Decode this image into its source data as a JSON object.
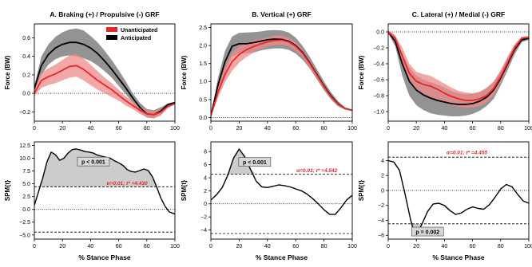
{
  "figure": {
    "shared_xlabel": "% Stance Phase",
    "ylabel_force": "Force (BW)",
    "ylabel_spm": "SPM{t}"
  },
  "colors": {
    "unanticipated": "#e8262a",
    "unanticipated_band": "#f08a8a",
    "anticipated": "#000000",
    "anticipated_band": "#808080",
    "spm_fill": "#cccccc",
    "threshold_text": "#e8262a"
  },
  "chart_data": [
    {
      "id": "A-force",
      "type": "line",
      "title": "A. Braking (+) / Propulsive (-) GRF",
      "xlabel": "",
      "ylabel": "Force (BW)",
      "xlim": [
        0,
        100
      ],
      "ylim": [
        -0.3,
        0.75
      ],
      "xticks": [
        "0",
        "20",
        "40",
        "60",
        "80",
        "100"
      ],
      "yticks": [
        {
          "v": -0.2,
          "t": "−0.2"
        },
        {
          "v": 0,
          "t": "0.0"
        },
        {
          "v": 0.2,
          "t": "0.2"
        },
        {
          "v": 0.4,
          "t": "0.4"
        },
        {
          "v": 0.6,
          "t": "0.6"
        }
      ],
      "legend": {
        "position": "top-right",
        "entries": [
          "Unanticipated",
          "Anticipated"
        ]
      },
      "hlines": [
        {
          "y": 0,
          "style": "dotted"
        }
      ],
      "x": [
        0,
        5,
        10,
        15,
        20,
        25,
        30,
        35,
        40,
        45,
        50,
        55,
        60,
        65,
        70,
        75,
        80,
        85,
        90,
        95,
        100
      ],
      "series": [
        {
          "name": "Anticipated",
          "color_key": "anticipated",
          "values": [
            0.05,
            0.3,
            0.42,
            0.49,
            0.53,
            0.55,
            0.55,
            0.53,
            0.49,
            0.43,
            0.35,
            0.26,
            0.16,
            0.06,
            -0.05,
            -0.15,
            -0.22,
            -0.23,
            -0.19,
            -0.12,
            -0.1
          ],
          "upper": [
            0.08,
            0.4,
            0.53,
            0.61,
            0.66,
            0.69,
            0.7,
            0.68,
            0.62,
            0.55,
            0.46,
            0.36,
            0.25,
            0.13,
            0.0,
            -0.1,
            -0.17,
            -0.18,
            -0.15,
            -0.11,
            -0.09
          ],
          "lower": [
            0.02,
            0.2,
            0.31,
            0.37,
            0.4,
            0.41,
            0.4,
            0.38,
            0.35,
            0.3,
            0.24,
            0.17,
            0.08,
            -0.01,
            -0.1,
            -0.2,
            -0.26,
            -0.27,
            -0.23,
            -0.14,
            -0.11
          ]
        },
        {
          "name": "Unanticipated",
          "color_key": "unanticipated",
          "values": [
            0.0,
            0.14,
            0.18,
            0.21,
            0.25,
            0.29,
            0.3,
            0.26,
            0.2,
            0.14,
            0.09,
            0.04,
            -0.02,
            -0.08,
            -0.13,
            -0.18,
            -0.22,
            -0.23,
            -0.2,
            -0.14,
            -0.11
          ],
          "upper": [
            0.03,
            0.22,
            0.27,
            0.31,
            0.36,
            0.41,
            0.42,
            0.38,
            0.31,
            0.24,
            0.17,
            0.11,
            0.04,
            -0.03,
            -0.09,
            -0.14,
            -0.18,
            -0.19,
            -0.17,
            -0.12,
            -0.1
          ],
          "lower": [
            -0.03,
            0.06,
            0.09,
            0.11,
            0.14,
            0.17,
            0.18,
            0.14,
            0.09,
            0.04,
            0.0,
            -0.04,
            -0.08,
            -0.13,
            -0.17,
            -0.22,
            -0.26,
            -0.27,
            -0.24,
            -0.16,
            -0.12
          ]
        }
      ]
    },
    {
      "id": "B-force",
      "type": "line",
      "title": "B. Vertical (+) GRF",
      "xlabel": "",
      "ylabel": "Force (BW)",
      "xlim": [
        0,
        100
      ],
      "ylim": [
        -0.1,
        2.6
      ],
      "xticks": [
        "0",
        "20",
        "40",
        "60",
        "80",
        "100"
      ],
      "yticks": [
        {
          "v": 0,
          "t": "0.0"
        },
        {
          "v": 0.5,
          "t": "0.5"
        },
        {
          "v": 1.0,
          "t": "1.0"
        },
        {
          "v": 1.5,
          "t": "1.5"
        },
        {
          "v": 2.0,
          "t": "2.0"
        },
        {
          "v": 2.5,
          "t": "2.5"
        }
      ],
      "hlines": [
        {
          "y": 0,
          "style": "dotted"
        }
      ],
      "x": [
        0,
        5,
        10,
        15,
        20,
        25,
        30,
        35,
        40,
        45,
        50,
        55,
        60,
        65,
        70,
        75,
        80,
        85,
        90,
        95,
        100
      ],
      "series": [
        {
          "name": "Anticipated",
          "color_key": "anticipated",
          "values": [
            0.05,
            0.9,
            1.55,
            1.98,
            2.05,
            2.05,
            2.08,
            2.12,
            2.16,
            2.18,
            2.17,
            2.12,
            2.0,
            1.8,
            1.52,
            1.2,
            0.88,
            0.6,
            0.38,
            0.25,
            0.2
          ],
          "upper": [
            0.08,
            1.1,
            1.85,
            2.25,
            2.35,
            2.36,
            2.37,
            2.39,
            2.42,
            2.43,
            2.42,
            2.36,
            2.22,
            1.98,
            1.68,
            1.34,
            1.0,
            0.7,
            0.45,
            0.28,
            0.22
          ],
          "lower": [
            0.02,
            0.7,
            1.25,
            1.7,
            1.78,
            1.78,
            1.8,
            1.86,
            1.9,
            1.92,
            1.92,
            1.88,
            1.78,
            1.6,
            1.36,
            1.06,
            0.76,
            0.5,
            0.31,
            0.22,
            0.18
          ]
        },
        {
          "name": "Unanticipated",
          "color_key": "unanticipated",
          "values": [
            0.05,
            0.7,
            1.2,
            1.55,
            1.75,
            1.88,
            1.97,
            2.04,
            2.1,
            2.14,
            2.15,
            2.1,
            1.98,
            1.78,
            1.5,
            1.18,
            0.86,
            0.58,
            0.37,
            0.25,
            0.2
          ],
          "upper": [
            0.08,
            0.85,
            1.42,
            1.8,
            1.98,
            2.08,
            2.14,
            2.18,
            2.23,
            2.27,
            2.28,
            2.22,
            2.1,
            1.88,
            1.6,
            1.26,
            0.93,
            0.63,
            0.41,
            0.27,
            0.22
          ],
          "lower": [
            0.02,
            0.55,
            0.98,
            1.3,
            1.52,
            1.68,
            1.8,
            1.9,
            1.97,
            2.01,
            2.02,
            1.98,
            1.86,
            1.68,
            1.4,
            1.1,
            0.79,
            0.53,
            0.33,
            0.23,
            0.18
          ]
        }
      ]
    },
    {
      "id": "C-force",
      "type": "line",
      "title": "C. Lateral (+) / Medial (-) GRF",
      "xlabel": "",
      "ylabel": "Force (BW)",
      "xlim": [
        0,
        100
      ],
      "ylim": [
        -1.12,
        0.1
      ],
      "xticks": [
        "0",
        "20",
        "40",
        "60",
        "80",
        "100"
      ],
      "yticks": [
        {
          "v": -1.0,
          "t": "−1.0"
        },
        {
          "v": -0.8,
          "t": "−0.8"
        },
        {
          "v": -0.6,
          "t": "−0.6"
        },
        {
          "v": -0.4,
          "t": "−0.4"
        },
        {
          "v": -0.2,
          "t": "−0.2"
        },
        {
          "v": 0,
          "t": "0.0"
        }
      ],
      "hlines": [
        {
          "y": 0,
          "style": "dotted"
        }
      ],
      "x": [
        0,
        5,
        10,
        15,
        20,
        25,
        30,
        35,
        40,
        45,
        50,
        55,
        60,
        65,
        70,
        75,
        80,
        85,
        90,
        95,
        100
      ],
      "series": [
        {
          "name": "Anticipated",
          "color_key": "anticipated",
          "values": [
            0.0,
            -0.12,
            -0.4,
            -0.62,
            -0.73,
            -0.79,
            -0.83,
            -0.86,
            -0.88,
            -0.9,
            -0.91,
            -0.91,
            -0.9,
            -0.87,
            -0.82,
            -0.73,
            -0.58,
            -0.4,
            -0.22,
            -0.1,
            -0.08
          ],
          "upper": [
            0.02,
            -0.06,
            -0.28,
            -0.45,
            -0.55,
            -0.6,
            -0.63,
            -0.66,
            -0.7,
            -0.74,
            -0.77,
            -0.78,
            -0.78,
            -0.76,
            -0.71,
            -0.63,
            -0.49,
            -0.32,
            -0.17,
            -0.07,
            -0.06
          ],
          "lower": [
            -0.02,
            -0.18,
            -0.55,
            -0.8,
            -0.92,
            -0.98,
            -1.02,
            -1.04,
            -1.05,
            -1.06,
            -1.06,
            -1.05,
            -1.03,
            -0.99,
            -0.93,
            -0.84,
            -0.67,
            -0.48,
            -0.28,
            -0.13,
            -0.1
          ]
        },
        {
          "name": "Unanticipated",
          "color_key": "unanticipated",
          "values": [
            0.0,
            -0.08,
            -0.3,
            -0.52,
            -0.62,
            -0.66,
            -0.68,
            -0.72,
            -0.77,
            -0.81,
            -0.84,
            -0.86,
            -0.86,
            -0.84,
            -0.8,
            -0.71,
            -0.56,
            -0.38,
            -0.2,
            -0.08,
            -0.07
          ],
          "upper": [
            0.02,
            -0.04,
            -0.2,
            -0.4,
            -0.5,
            -0.53,
            -0.55,
            -0.6,
            -0.65,
            -0.7,
            -0.74,
            -0.76,
            -0.77,
            -0.75,
            -0.7,
            -0.62,
            -0.48,
            -0.31,
            -0.15,
            -0.06,
            -0.05
          ],
          "lower": [
            -0.02,
            -0.12,
            -0.4,
            -0.64,
            -0.74,
            -0.79,
            -0.82,
            -0.85,
            -0.89,
            -0.92,
            -0.94,
            -0.95,
            -0.95,
            -0.93,
            -0.89,
            -0.8,
            -0.64,
            -0.45,
            -0.26,
            -0.11,
            -0.09
          ]
        }
      ]
    },
    {
      "id": "A-spm",
      "type": "line",
      "title": "",
      "xlabel": "% Stance Phase",
      "ylabel": "SPM{t}",
      "xlim": [
        0,
        100
      ],
      "ylim": [
        -5.8,
        13.2
      ],
      "xticks": [
        "0",
        "20",
        "40",
        "60",
        "80",
        "100"
      ],
      "yticks": [
        {
          "v": -5,
          "t": "−5.0"
        },
        {
          "v": -2.5,
          "t": "−2.5"
        },
        {
          "v": 0,
          "t": "0.0"
        },
        {
          "v": 2.5,
          "t": "2.5"
        },
        {
          "v": 5,
          "t": "5.0"
        },
        {
          "v": 7.5,
          "t": "7.5"
        },
        {
          "v": 10,
          "t": "10.0"
        },
        {
          "v": 12.5,
          "t": "12.5"
        }
      ],
      "threshold": 4.43,
      "hlines": [
        {
          "y": 4.43,
          "style": "dashed"
        },
        {
          "y": -4.43,
          "style": "dashed"
        },
        {
          "y": 0,
          "style": "dotted"
        }
      ],
      "threshold_label": "α=0.01;  t* =4.430",
      "p_label": "p < 0.001",
      "shade": "above",
      "x": [
        0,
        3,
        6,
        9,
        12,
        15,
        18,
        21,
        24,
        27,
        30,
        33,
        36,
        39,
        42,
        45,
        48,
        51,
        54,
        57,
        60,
        63,
        66,
        69,
        72,
        75,
        78,
        81,
        84,
        87,
        90,
        93,
        96,
        100
      ],
      "series": [
        {
          "name": "SPM{t}",
          "values": [
            0.8,
            3.5,
            6.2,
            9.3,
            11.2,
            10.7,
            9.6,
            10.0,
            11.0,
            11.7,
            11.8,
            11.6,
            11.3,
            11.2,
            11.0,
            10.6,
            10.4,
            10.2,
            10.0,
            9.5,
            9.1,
            8.6,
            7.8,
            7.4,
            7.3,
            7.6,
            7.9,
            7.6,
            6.4,
            4.4,
            2.2,
            0.6,
            -0.5,
            -0.9
          ]
        }
      ]
    },
    {
      "id": "B-spm",
      "type": "line",
      "title": "",
      "xlabel": "% Stance Phase",
      "ylabel": "SPM{t}",
      "xlim": [
        0,
        100
      ],
      "ylim": [
        -5.4,
        9.5
      ],
      "xticks": [
        "0",
        "20",
        "40",
        "60",
        "80",
        "100"
      ],
      "yticks": [
        {
          "v": -4,
          "t": "−4"
        },
        {
          "v": -2,
          "t": "−2"
        },
        {
          "v": 0,
          "t": "0"
        },
        {
          "v": 2,
          "t": "2"
        },
        {
          "v": 4,
          "t": "4"
        },
        {
          "v": 6,
          "t": "6"
        },
        {
          "v": 8,
          "t": "8"
        }
      ],
      "threshold": 4.542,
      "hlines": [
        {
          "y": 4.542,
          "style": "dashed"
        },
        {
          "y": -4.542,
          "style": "dashed"
        },
        {
          "y": 0,
          "style": "dotted"
        }
      ],
      "threshold_label": "α=0.01;  t* =4.542",
      "p_label": "p < 0.001",
      "shade": "above",
      "x": [
        0,
        4,
        8,
        12,
        16,
        20,
        24,
        28,
        32,
        36,
        40,
        44,
        48,
        52,
        56,
        60,
        64,
        68,
        72,
        76,
        80,
        84,
        88,
        92,
        96,
        100
      ],
      "series": [
        {
          "name": "SPM{t}",
          "values": [
            0.6,
            1.4,
            2.5,
            4.4,
            7.0,
            8.4,
            7.2,
            5.3,
            3.5,
            2.6,
            2.5,
            2.7,
            2.9,
            2.8,
            2.6,
            2.3,
            2.0,
            1.5,
            0.8,
            0.0,
            -0.9,
            -1.6,
            -1.6,
            -0.6,
            0.6,
            1.3
          ]
        }
      ]
    },
    {
      "id": "C-spm",
      "type": "line",
      "title": "",
      "xlabel": "% Stance Phase",
      "ylabel": "SPM{t}",
      "xlim": [
        0,
        100
      ],
      "ylim": [
        -6.5,
        6.5
      ],
      "xticks": [
        "0",
        "20",
        "40",
        "60",
        "80",
        "100"
      ],
      "yticks": [
        {
          "v": -6,
          "t": "−6"
        },
        {
          "v": -4,
          "t": "−4"
        },
        {
          "v": -2,
          "t": "−2"
        },
        {
          "v": 0,
          "t": "0"
        },
        {
          "v": 2,
          "t": "2"
        },
        {
          "v": 4,
          "t": "4"
        }
      ],
      "threshold": 4.455,
      "hlines": [
        {
          "y": 4.455,
          "style": "dashed"
        },
        {
          "y": -4.455,
          "style": "dashed"
        },
        {
          "y": 0,
          "style": "dotted"
        }
      ],
      "threshold_label": "α=0.01;  t* =4.455",
      "p_label": "p = 0.002",
      "shade": "below",
      "x": [
        0,
        4,
        8,
        12,
        16,
        18,
        20,
        22,
        24,
        28,
        32,
        36,
        40,
        44,
        48,
        52,
        56,
        60,
        64,
        68,
        72,
        76,
        80,
        84,
        88,
        92,
        96,
        100
      ],
      "series": [
        {
          "name": "SPM{t}",
          "values": [
            4.0,
            3.8,
            2.7,
            -0.5,
            -4.0,
            -5.3,
            -5.7,
            -5.3,
            -4.5,
            -2.8,
            -1.8,
            -1.7,
            -2.0,
            -2.7,
            -3.2,
            -3.0,
            -2.5,
            -2.2,
            -2.4,
            -2.5,
            -1.9,
            -0.9,
            0.2,
            0.8,
            0.5,
            -0.5,
            -1.4,
            -1.7
          ]
        }
      ]
    }
  ]
}
